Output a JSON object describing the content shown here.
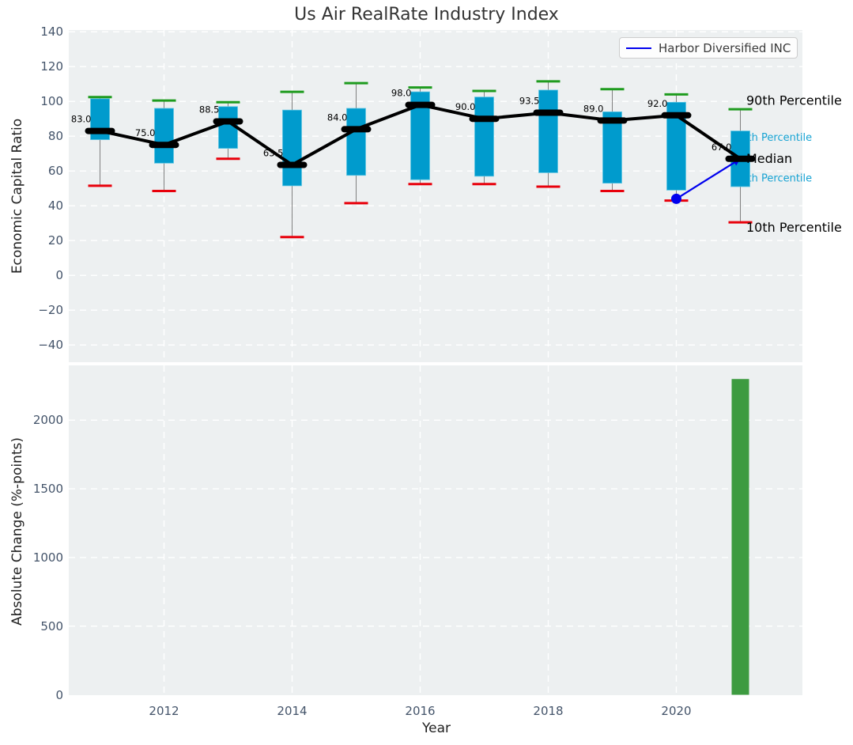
{
  "title": "Us Air RealRate Industry Index",
  "legend": {
    "label": "Harbor Diversified INC"
  },
  "axis_labels": {
    "top_y": "Economic Capital Ratio",
    "bottom_y": "Absolute Change (%-points)",
    "x": "Year"
  },
  "annotations": [
    {
      "text": "90th Percentile",
      "style": "major",
      "value": 100.5
    },
    {
      "text": "75th Percentile",
      "style": "minor",
      "value": 79.5
    },
    {
      "text": "Median",
      "style": "major",
      "value": 67.2
    },
    {
      "text": "25th Percentile",
      "style": "minor",
      "value": 56.0
    },
    {
      "text": "10th Percentile",
      "style": "major",
      "value": 27.5
    }
  ],
  "colors": {
    "box_fill": "#009bcd",
    "box_edge": "#5ac4e2",
    "cap_high": "#1e9b1e",
    "cap_low": "#e8000b",
    "whisker": "#808080",
    "median_marker": "#000000",
    "trend_line": "#000000",
    "series_line": "#0000ee",
    "bar_fill": "#3d9b40",
    "plot_bg": "#edf0f1",
    "grid": "#ffffff",
    "tick_text": "#44546a",
    "annotation_major": "#000000",
    "annotation_minor": "#17a3d3"
  },
  "chart_data": [
    {
      "type": "boxplot+line",
      "title": "Us Air RealRate Industry Index",
      "ylabel": "Economic Capital Ratio",
      "ylim": [
        -50,
        141
      ],
      "yticks": [
        140,
        120,
        100,
        80,
        60,
        40,
        20,
        0,
        -20,
        -40
      ],
      "xgrid_years": [
        2012,
        2014,
        2016,
        2018,
        2020
      ],
      "years": [
        2011,
        2012,
        2013,
        2014,
        2015,
        2016,
        2017,
        2018,
        2019,
        2020,
        2021
      ],
      "p10": [
        51.5,
        48.5,
        67.0,
        22.0,
        41.5,
        52.5,
        52.5,
        51.0,
        48.5,
        43.0,
        30.5
      ],
      "p25": [
        78.0,
        64.5,
        73.0,
        51.5,
        57.5,
        55.0,
        57.0,
        59.0,
        53.0,
        49.0,
        51.0
      ],
      "median": [
        83.0,
        75.0,
        88.5,
        63.5,
        84.0,
        98.0,
        90.0,
        93.5,
        89.0,
        92.0,
        67.0
      ],
      "p75": [
        101.5,
        96.0,
        97.0,
        95.0,
        96.0,
        105.5,
        102.5,
        106.5,
        94.0,
        99.5,
        83.0
      ],
      "p90": [
        102.5,
        100.5,
        99.5,
        105.5,
        110.5,
        108.0,
        106.0,
        111.5,
        107.0,
        104.0,
        95.5
      ],
      "median_labels": [
        "83.0",
        "75.0",
        "88.5",
        "63.5",
        "84.0",
        "98.0",
        "90.0",
        "93.5",
        "89.0",
        "92.0",
        "67.0"
      ],
      "series": [
        {
          "name": "Harbor Diversified INC",
          "x": [
            2020,
            2021
          ],
          "y": [
            44,
            67
          ]
        }
      ],
      "legend_position": "upper right",
      "grid": true
    },
    {
      "type": "bar",
      "ylabel": "Absolute Change (%-points)",
      "xlabel": "Year",
      "ylim": [
        0,
        2400
      ],
      "yticks": [
        0,
        500,
        1000,
        1500,
        2000
      ],
      "xticks": [
        2012,
        2014,
        2016,
        2018,
        2020
      ],
      "bars": [
        {
          "x": 2021,
          "value": 2300
        }
      ],
      "grid": true
    }
  ]
}
